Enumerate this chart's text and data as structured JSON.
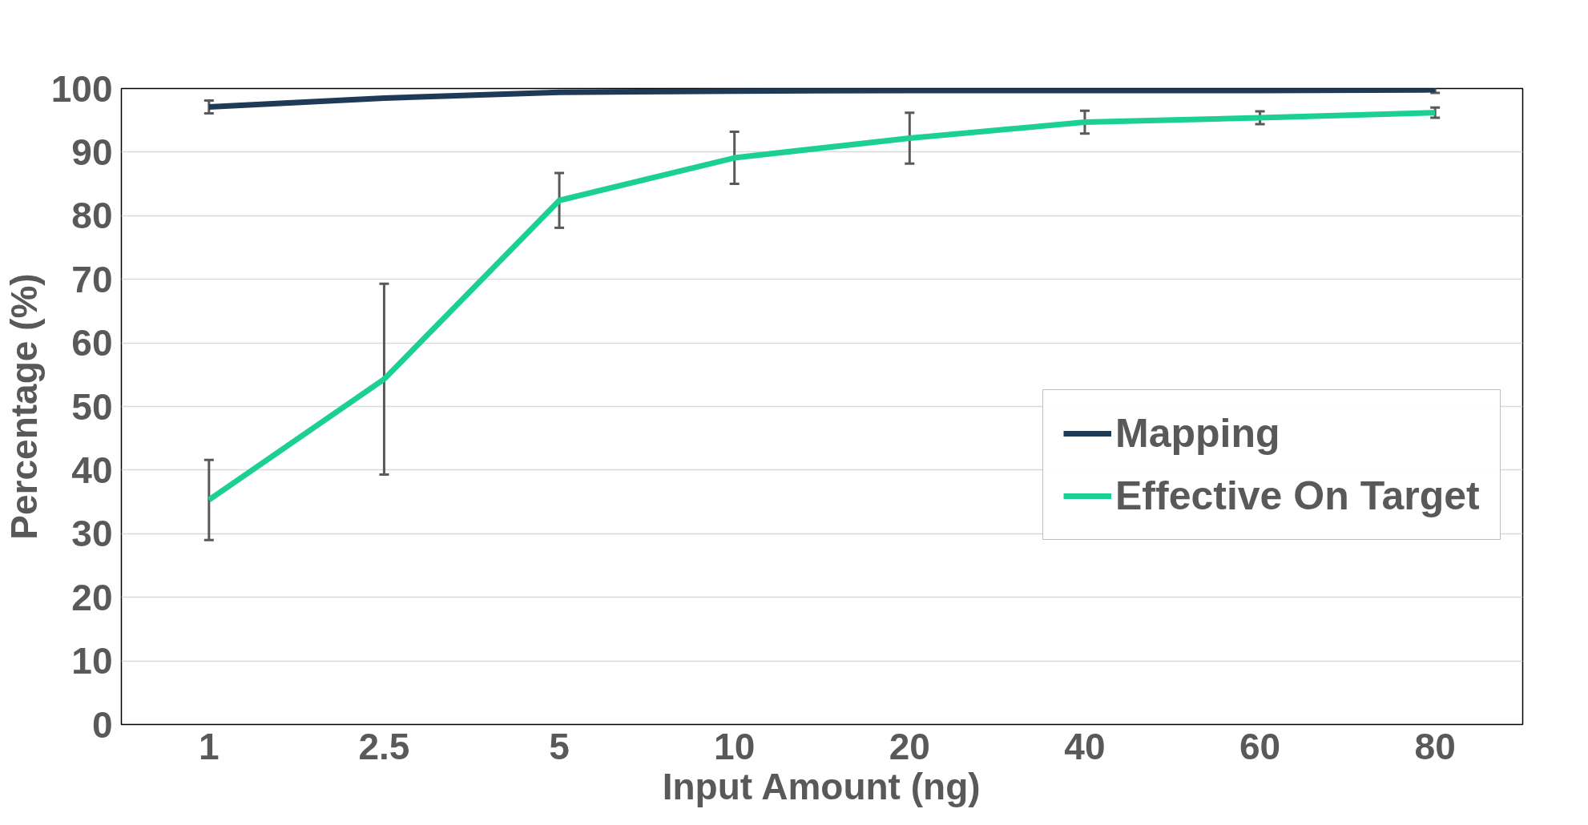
{
  "chart_data": {
    "type": "line",
    "xlabel": "Input Amount (ng)",
    "ylabel": "Percentage (%)",
    "categories": [
      "1",
      "2.5",
      "5",
      "10",
      "20",
      "40",
      "60",
      "80"
    ],
    "series": [
      {
        "name": "Mapping",
        "color": "#1f3a56",
        "values": [
          97.1,
          98.5,
          99.4,
          99.6,
          99.7,
          99.7,
          99.7,
          99.8
        ],
        "errors": [
          1,
          null,
          null,
          null,
          null,
          null,
          null,
          0.5
        ]
      },
      {
        "name": "Effective On Target",
        "color": "#1ccf95",
        "values": [
          35.3,
          54.3,
          82.4,
          89.1,
          92.2,
          94.7,
          95.4,
          96.2
        ],
        "errors": [
          6.3,
          15,
          4.3,
          4.1,
          4,
          1.8,
          1,
          0.8
        ]
      }
    ],
    "ylim": [
      0,
      100
    ],
    "yticks": [
      0,
      10,
      20,
      30,
      40,
      50,
      60,
      70,
      80,
      90,
      100
    ],
    "grid": "y",
    "legend": "right",
    "marker": "none",
    "line_style": "solid"
  }
}
